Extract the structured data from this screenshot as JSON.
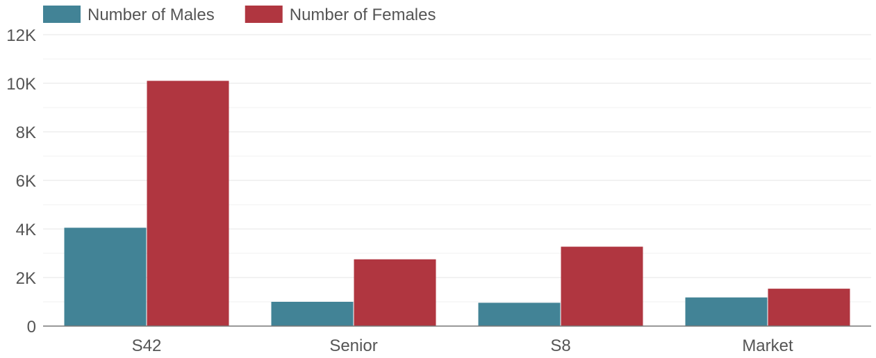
{
  "chart_data": {
    "type": "bar",
    "categories": [
      "S42",
      "Senior",
      "S8",
      "Market"
    ],
    "series": [
      {
        "name": "Number of Males",
        "values": [
          4050,
          1000,
          960,
          1180
        ],
        "color": "#428396"
      },
      {
        "name": "Number of Females",
        "values": [
          10100,
          2750,
          3270,
          1540
        ],
        "color": "#b03640"
      }
    ],
    "y_ticks": [
      "0",
      "2K",
      "4K",
      "6K",
      "8K",
      "10K",
      "12K"
    ],
    "ylim": [
      0,
      12000
    ],
    "legend_position": "top-left",
    "grid": true
  }
}
